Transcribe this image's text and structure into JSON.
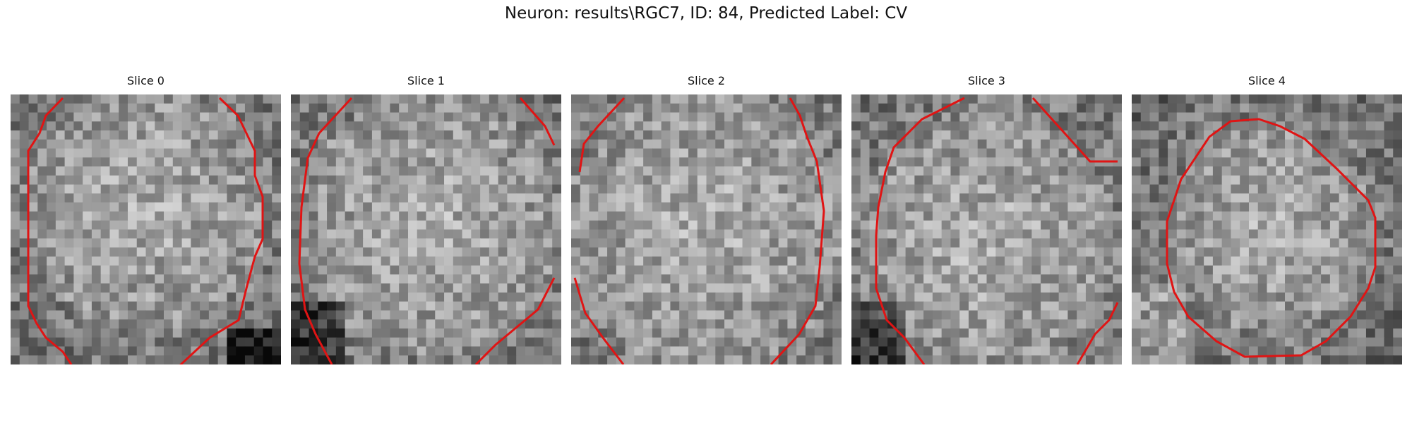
{
  "figure": {
    "title": "Neuron: results\\RGC7, ID: 84, Predicted Label: CV",
    "contour_color": "#e01414",
    "colormap": "gray"
  },
  "slices": [
    {
      "title": "Slice 0",
      "image": "grayscale-neuron-crop",
      "contour": "red-cell-outline"
    },
    {
      "title": "Slice 1",
      "image": "grayscale-neuron-crop",
      "contour": "red-cell-outline"
    },
    {
      "title": "Slice 2",
      "image": "grayscale-neuron-crop",
      "contour": "red-cell-outline"
    },
    {
      "title": "Slice 3",
      "image": "grayscale-neuron-crop",
      "contour": "red-cell-outline"
    },
    {
      "title": "Slice 4",
      "image": "grayscale-neuron-crop",
      "contour": "red-cell-outline"
    }
  ]
}
